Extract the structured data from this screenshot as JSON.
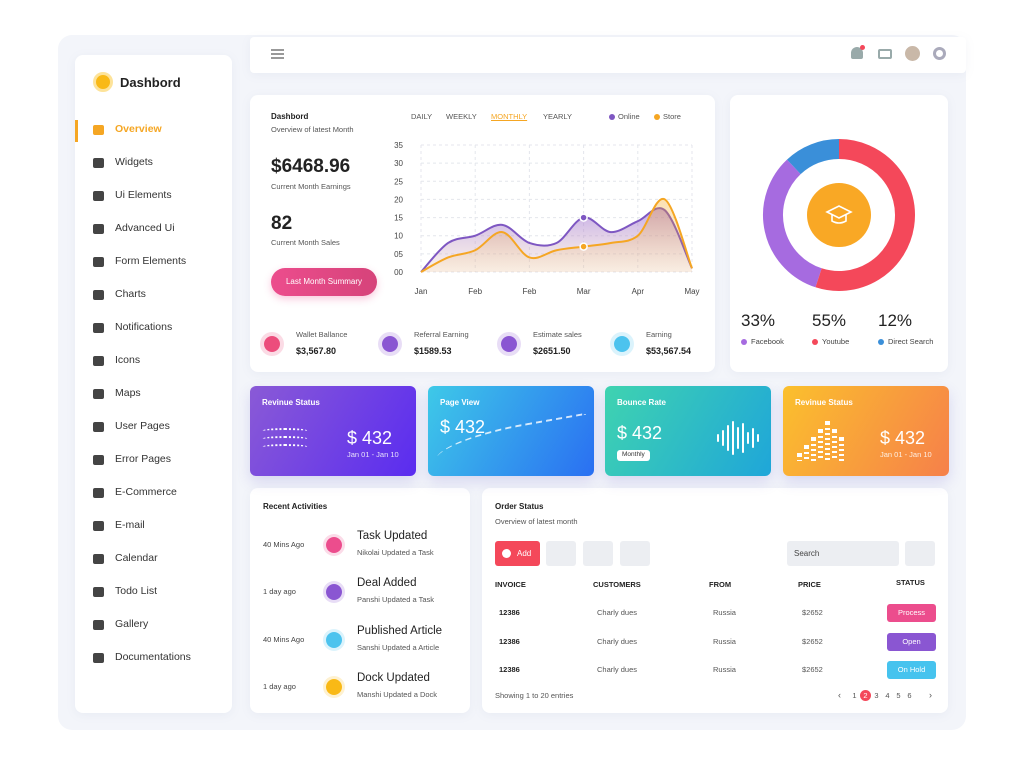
{
  "sidebar": {
    "brand": "Dashbord",
    "active": 0,
    "menu": [
      "Overview",
      "Widgets",
      "Ui Elements",
      "Advanced Ui",
      "Form Elements",
      "Charts",
      "Notifications",
      "Icons",
      "Maps",
      "User Pages",
      "Error Pages",
      "E-Commerce",
      "E-mail",
      "Calendar",
      "Todo List",
      "Gallery",
      "Documentations"
    ]
  },
  "earnings": {
    "title": "Dashbord",
    "subtitle": "Overview of latest Month",
    "tabs": [
      "DAILY",
      "WEEKLY",
      "MONTHLY",
      "YEARLY"
    ],
    "active_tab": 2,
    "amount": "$6468.96",
    "amount_label": "Current Month Earnings",
    "sales": "82",
    "sales_label": "Current Month Sales",
    "button": "Last Month Summary"
  },
  "chart_data": [
    {
      "type": "line",
      "grid": true,
      "x": [
        0,
        0.5,
        1,
        1.5,
        2,
        2.5,
        3,
        3.5,
        4,
        4.5,
        5
      ],
      "xlim": [
        0,
        5
      ],
      "xticks": [
        {
          "value": 0,
          "label": "Jan"
        },
        {
          "value": 1,
          "label": "Feb"
        },
        {
          "value": 2,
          "label": "Feb"
        },
        {
          "value": 3,
          "label": "Mar"
        },
        {
          "value": 4,
          "label": "Apr"
        },
        {
          "value": 5,
          "label": "May"
        }
      ],
      "ylim": [
        0,
        35
      ],
      "yticks": [
        {
          "value": 0,
          "label": "00"
        },
        {
          "value": 5,
          "label": "05"
        },
        10,
        15,
        20,
        25,
        30,
        35
      ],
      "series": [
        {
          "name": "Online",
          "color": "#7e57c2",
          "values": [
            0,
            8,
            10,
            13,
            8,
            8,
            15,
            11,
            14,
            17,
            1
          ]
        },
        {
          "name": "Store",
          "color": "#f5a623",
          "values": [
            0,
            4,
            6,
            11,
            4,
            6,
            7,
            8,
            10,
            20,
            1
          ]
        }
      ]
    },
    {
      "type": "pie",
      "categories": [
        "Facebook",
        "Youtube",
        "Direct Search"
      ],
      "values": [
        33,
        55,
        12
      ],
      "value_labels": [
        "33%",
        "55%",
        "12%"
      ],
      "colors": [
        "#a66be0",
        "#f4485a",
        "#3a8fd9"
      ]
    }
  ],
  "stats": [
    {
      "label": "Wallet Ballance",
      "value": "$3,567.80",
      "color": "#ec4d7c"
    },
    {
      "label": "Referral Earning",
      "value": "$1589.53",
      "color": "#8a56d2"
    },
    {
      "label": "Estimate sales",
      "value": "$2651.50",
      "color": "#8a56d2"
    },
    {
      "label": "Earning",
      "value": "$53,567.54",
      "color": "#4cc3ee"
    }
  ],
  "cards": [
    {
      "title": "Revinue Status",
      "value": "$ 432",
      "range": "Jan 01 - Jan 10"
    },
    {
      "title": "Page View",
      "value": "$ 432"
    },
    {
      "title": "Bounce Rate",
      "value": "$ 432",
      "select": "Monthly"
    },
    {
      "title": "Revinue Status",
      "value": "$ 432",
      "range": "Jan 01 - Jan 10"
    }
  ],
  "activities": {
    "title": "Recent Activities",
    "items": [
      {
        "time": "40 Mins Ago",
        "title": "Task Updated",
        "text": "Nikolai Updated a Task"
      },
      {
        "time": "1 day ago",
        "title": "Deal Added",
        "text": "Panshi Updated a Task"
      },
      {
        "time": "40 Mins Ago",
        "title": "Published Article",
        "text": "Sanshi Updated a Article"
      },
      {
        "time": "1 day ago",
        "title": "Dock Updated",
        "text": "Manshi Updated a Dock"
      }
    ]
  },
  "orders": {
    "title": "Order Status",
    "subtitle": "Overview of latest month",
    "add": "Add",
    "search": "Search",
    "columns": [
      "INVOICE",
      "CUSTOMERS",
      "FROM",
      "PRICE",
      "STATUS"
    ],
    "rows": [
      [
        "12386",
        "Charly dues",
        "Russia",
        "$2652",
        "Process"
      ],
      [
        "12386",
        "Charly dues",
        "Russia",
        "$2652",
        "Open"
      ],
      [
        "12386",
        "Charly dues",
        "Russia",
        "$2652",
        "On Hold"
      ]
    ],
    "footer": "Showing 1 to 20 entries",
    "pages": [
      "1",
      "2",
      "3",
      "4",
      "5",
      "6"
    ],
    "active_page": 1
  }
}
